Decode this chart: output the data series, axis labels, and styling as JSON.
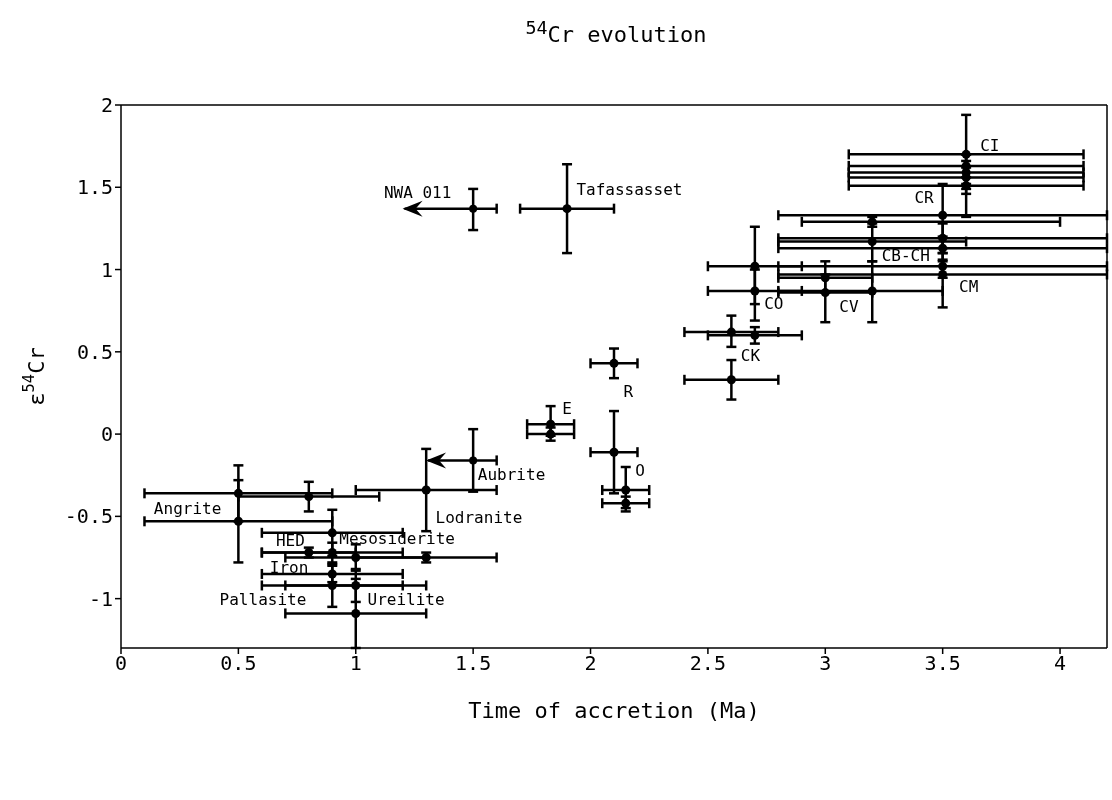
{
  "chart_data": {
    "type": "scatter",
    "title": "$^{54}$Cr evolution",
    "xlabel": "Time of accretion (Ma)",
    "ylabel": "ε$^{54}$Cr",
    "xlim": [
      0,
      4.2
    ],
    "xticks": [
      0,
      0.5,
      1,
      1.5,
      2,
      2.5,
      3,
      3.5,
      4
    ],
    "ylim": [
      -1.3,
      2
    ],
    "yticks": [
      -1,
      -0.5,
      0,
      0.5,
      1,
      1.5,
      2
    ],
    "grid": false,
    "marker": "circle",
    "series": [
      {
        "color": "#000000",
        "x": [
          0.5,
          0.5,
          0.8,
          0.9,
          0.8,
          0.9,
          1.0,
          1.3,
          0.9,
          0.9,
          1.0,
          1.0,
          1.3,
          1.9,
          1.83,
          1.83,
          2.1,
          2.1,
          2.15,
          2.15,
          2.6,
          2.6,
          2.7,
          2.7,
          2.7,
          3.0,
          3.0,
          3.2,
          3.2,
          3.2,
          3.5,
          3.5,
          3.5,
          3.5,
          3.5,
          3.6,
          3.6,
          3.6,
          3.6,
          3.6
        ],
        "values": [
          -0.36,
          -0.53,
          -0.38,
          -0.6,
          -0.72,
          -0.72,
          -0.75,
          -0.75,
          -0.85,
          -0.92,
          -0.92,
          -1.09,
          -0.34,
          1.37,
          0.06,
          0.0,
          0.43,
          -0.11,
          -0.34,
          -0.42,
          0.33,
          0.62,
          0.6,
          1.02,
          0.87,
          0.95,
          0.86,
          0.87,
          1.17,
          1.29,
          1.33,
          1.19,
          1.13,
          1.02,
          0.97,
          1.7,
          1.63,
          1.59,
          1.56,
          1.51
        ],
        "xerrors": [
          [
            0.1,
            0.9
          ],
          [
            0.1,
            0.9
          ],
          [
            0.5,
            1.1
          ],
          [
            0.6,
            1.2
          ],
          [
            0.6,
            1.0
          ],
          [
            0.6,
            1.2
          ],
          [
            0.7,
            1.3
          ],
          [
            1.0,
            1.6
          ],
          [
            0.6,
            1.2
          ],
          [
            0.6,
            1.2
          ],
          [
            0.7,
            1.3
          ],
          [
            0.7,
            1.3
          ],
          [
            1.0,
            1.6
          ],
          [
            1.7,
            2.1
          ],
          [
            1.73,
            1.93
          ],
          [
            1.73,
            1.93
          ],
          [
            2.0,
            2.2
          ],
          [
            2.0,
            2.2
          ],
          [
            2.05,
            2.25
          ],
          [
            2.05,
            2.25
          ],
          [
            2.4,
            2.8
          ],
          [
            2.4,
            2.8
          ],
          [
            2.5,
            2.9
          ],
          [
            2.5,
            2.9
          ],
          [
            2.5,
            2.9
          ],
          [
            2.8,
            3.2
          ],
          [
            2.8,
            3.2
          ],
          [
            2.8,
            3.5
          ],
          [
            2.8,
            3.6
          ],
          [
            2.9,
            4.0
          ],
          [
            2.8,
            4.2
          ],
          [
            2.8,
            4.2
          ],
          [
            2.8,
            4.2
          ],
          [
            2.8,
            4.2
          ],
          [
            2.8,
            4.2
          ],
          [
            3.1,
            4.1
          ],
          [
            3.1,
            4.1
          ],
          [
            3.1,
            4.1
          ],
          [
            3.1,
            4.1
          ],
          [
            3.1,
            4.1
          ]
        ],
        "errors": [
          [
            -0.53,
            -0.19
          ],
          [
            -0.78,
            -0.28
          ],
          [
            -0.47,
            -0.29
          ],
          [
            -0.74,
            -0.46
          ],
          [
            -0.75,
            -0.69
          ],
          [
            -0.78,
            -0.66
          ],
          [
            -0.83,
            -0.67
          ],
          [
            -0.78,
            -0.72
          ],
          [
            -0.9,
            -0.8
          ],
          [
            -1.05,
            -0.79
          ],
          [
            -1.02,
            -0.82
          ],
          [
            -1.3,
            -0.88
          ],
          [
            -0.59,
            -0.09
          ],
          [
            1.1,
            1.64
          ],
          [
            -0.01,
            0.17
          ],
          [
            -0.04,
            0.04
          ],
          [
            0.34,
            0.52
          ],
          [
            -0.36,
            0.14
          ],
          [
            -0.45,
            -0.2
          ],
          [
            -0.47,
            -0.38
          ],
          [
            0.21,
            0.45
          ],
          [
            0.53,
            0.72
          ],
          [
            0.55,
            0.65
          ],
          [
            0.79,
            1.26
          ],
          [
            0.69,
            1.0
          ],
          [
            0.86,
            1.05
          ],
          [
            0.68,
            0.97
          ],
          [
            0.68,
            1.05
          ],
          [
            1.05,
            1.28
          ],
          [
            1.26,
            1.32
          ],
          [
            1.13,
            1.52
          ],
          [
            1.1,
            1.28
          ],
          [
            1.06,
            1.2
          ],
          [
            0.95,
            1.1
          ],
          [
            0.77,
            1.05
          ],
          [
            1.46,
            1.94
          ],
          [
            1.56,
            1.7
          ],
          [
            1.52,
            1.66
          ],
          [
            1.49,
            1.62
          ],
          [
            1.32,
            1.7
          ]
        ]
      },
      {
        "color": "#000000",
        "x": [
          1.5,
          1.5
        ],
        "values": [
          1.37,
          -0.16
        ],
        "xerrors": [
          [
            1.2,
            1.6
          ],
          [
            1.3,
            1.6
          ]
        ],
        "errors": [
          [
            1.24,
            1.49
          ],
          [
            -0.35,
            0.03
          ]
        ]
      }
    ],
    "annotations": [
      "CI",
      "CR",
      "CB-CH",
      "CM",
      "CO",
      "CV",
      "CK",
      "R",
      "E",
      "O",
      "Tafassasset",
      "NWA 011",
      "Aubrite",
      "Lodranite",
      "Angrite",
      {
        "text": "HED",
        "x": 0.8,
        "y": -0.72
      },
      "Mesosiderite",
      {
        "text": "Iron",
        "x": 0.9,
        "y": -0.72
      },
      "Pallasite",
      "Ureilite"
    ]
  }
}
